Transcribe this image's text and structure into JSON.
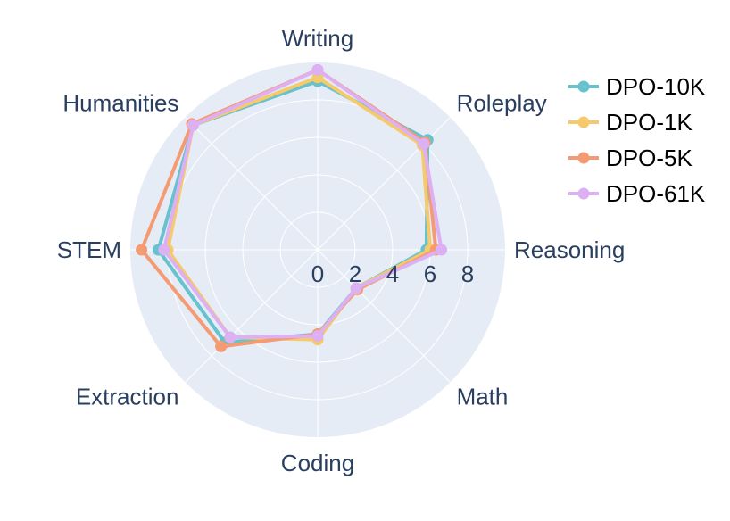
{
  "chart_data": {
    "type": "radar",
    "categories": [
      "Writing",
      "Roleplay",
      "Reasoning",
      "Math",
      "Coding",
      "Extraction",
      "STEM",
      "Humanities"
    ],
    "radial_ticks": [
      0,
      2,
      4,
      6,
      8
    ],
    "radial_range": [
      0,
      10
    ],
    "grid": true,
    "legend_position": "top-right",
    "series": [
      {
        "name": "DPO-10K",
        "color": "#66c2cc",
        "values": [
          9.0,
          8.3,
          5.8,
          2.9,
          4.5,
          7.0,
          8.5,
          9.4
        ]
      },
      {
        "name": "DPO-1K",
        "color": "#f6c96b",
        "values": [
          9.2,
          7.9,
          6.0,
          2.9,
          4.8,
          6.6,
          8.0,
          9.4
        ]
      },
      {
        "name": "DPO-5K",
        "color": "#f49b74",
        "values": [
          9.6,
          8.1,
          6.3,
          3.0,
          4.5,
          7.3,
          9.4,
          9.5
        ]
      },
      {
        "name": "DPO-61K",
        "color": "#dcb0f2",
        "values": [
          9.6,
          8.0,
          6.6,
          2.9,
          4.6,
          6.6,
          8.2,
          9.4
        ]
      }
    ]
  }
}
